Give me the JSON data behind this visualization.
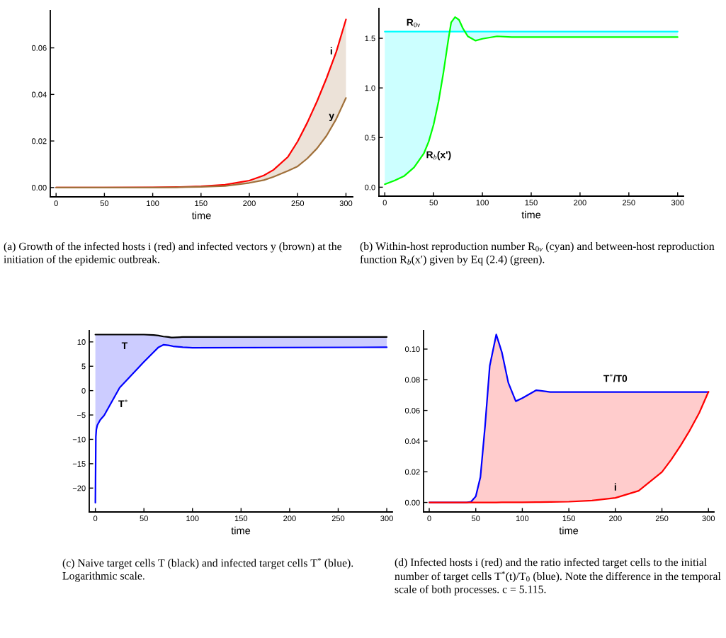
{
  "chart_data": [
    {
      "type": "line",
      "xlabel": "time",
      "x": [
        0,
        50,
        100,
        125,
        150,
        175,
        200,
        215,
        225,
        240,
        250,
        260,
        270,
        280,
        290,
        300
      ],
      "series": [
        {
          "name": "i",
          "color": "#ff0000",
          "values": [
            0,
            0,
            0.0001,
            0.0002,
            0.0005,
            0.0012,
            0.003,
            0.0052,
            0.0076,
            0.0132,
            0.0198,
            0.0279,
            0.037,
            0.0471,
            0.0583,
            0.0722
          ]
        },
        {
          "name": "y",
          "color": "#a0703a",
          "values": [
            0,
            0,
            0,
            0.0001,
            0.0003,
            0.0007,
            0.002,
            0.0032,
            0.0046,
            0.0072,
            0.0091,
            0.0125,
            0.0168,
            0.0223,
            0.0295,
            0.0385
          ],
          "lower": [
            0,
            0,
            0,
            0.0001,
            0.0003,
            0.0007,
            0.002,
            0.0032,
            0.0046,
            0.0072,
            0.0091,
            0.0125,
            0.0168,
            0.0223,
            0.0295,
            0.0385
          ],
          "upper": [
            0,
            0,
            0.0001,
            0.0002,
            0.0005,
            0.0012,
            0.003,
            0.0052,
            0.0076,
            0.0132,
            0.0198,
            0.0279,
            0.037,
            0.0471,
            0.0583,
            0.0722
          ]
        }
      ],
      "xlim": [
        -6,
        307
      ],
      "ylim": [
        -0.004,
        0.076
      ],
      "xticks": [
        0,
        50,
        100,
        150,
        200,
        250,
        300
      ],
      "yticks": [
        {
          "value": 0,
          "label": "0.00"
        },
        {
          "value": 0.02,
          "label": "0.02"
        },
        {
          "value": 0.04,
          "label": "0.04"
        },
        {
          "value": 0.06,
          "label": "0.06"
        }
      ],
      "annotations": [
        "(a) Growth of the infected hosts i (red) and infected vectors y (brown) at the initiation of the epidemic outbreak."
      ]
    },
    {
      "type": "line",
      "xlabel": "time",
      "x": [
        0,
        10,
        20,
        30,
        40,
        45,
        50,
        55,
        60,
        65,
        68,
        72,
        76,
        80,
        85,
        93,
        100,
        115,
        130,
        150,
        300
      ],
      "series": [
        {
          "name": "R$_{0v}$",
          "color": "#00ffff",
          "values": [
            1.567,
            1.567,
            1.567,
            1.567,
            1.567,
            1.567,
            1.567,
            1.567,
            1.567,
            1.567,
            1.567,
            1.567,
            1.567,
            1.567,
            1.567,
            1.567,
            1.567,
            1.567,
            1.567,
            1.567,
            1.567
          ],
          "lower": [
            0.03,
            0.067,
            0.114,
            0.2,
            0.34,
            0.46,
            0.63,
            0.86,
            1.15,
            1.48,
            1.66,
            1.714,
            1.686,
            1.6,
            1.52,
            1.476,
            1.495,
            1.52,
            1.512,
            1.512,
            1.512
          ],
          "upper": [
            1.567,
            1.567,
            1.567,
            1.567,
            1.567,
            1.567,
            1.567,
            1.567,
            1.567,
            1.567,
            1.567,
            1.567,
            1.567,
            1.567,
            1.567,
            1.567,
            1.567,
            1.567,
            1.567,
            1.567,
            1.567
          ]
        },
        {
          "name": "R$_{b}$(x')",
          "color": "#00ff00",
          "values": [
            0.03,
            0.067,
            0.114,
            0.2,
            0.34,
            0.46,
            0.63,
            0.86,
            1.15,
            1.48,
            1.66,
            1.714,
            1.686,
            1.6,
            1.52,
            1.476,
            1.495,
            1.52,
            1.512,
            1.512,
            1.512
          ]
        }
      ],
      "xlim": [
        -6,
        306
      ],
      "ylim": [
        -0.09,
        1.8
      ],
      "xticks": [
        0,
        50,
        100,
        150,
        200,
        250,
        300
      ],
      "yticks": [
        {
          "value": 0,
          "label": "0.0"
        },
        {
          "value": 0.5,
          "label": "0.5"
        },
        {
          "value": 1,
          "label": "1.0"
        },
        {
          "value": 1.5,
          "label": "1.5"
        }
      ],
      "annotations": [
        "(b) Within-host reproduction number R$_{0v}$ (cyan) and between-host reproduction function R$_{b}$(x′) given by Eq (2.4) (green)."
      ]
    },
    {
      "type": "line",
      "xlabel": "time",
      "x": [
        0,
        0.5,
        1,
        2,
        5,
        9,
        25,
        50,
        60,
        65,
        70,
        75,
        78,
        80,
        90,
        100,
        300
      ],
      "series": [
        {
          "name": "T",
          "color": "#000000",
          "values": [
            11.5,
            11.5,
            11.5,
            11.5,
            11.5,
            11.5,
            11.5,
            11.5,
            11.4,
            11.3,
            11.1,
            11.0,
            10.9,
            10.9,
            11.0,
            11.0,
            11.0
          ]
        },
        {
          "name": "T$^{*}$",
          "color": "#0000ff",
          "values": [
            -23,
            -9.5,
            -8,
            -7.1,
            -6,
            -5.1,
            0.6,
            5.9,
            7.9,
            8.9,
            9.4,
            9.3,
            9.2,
            9.1,
            8.9,
            8.8,
            8.9
          ],
          "lower": [
            -23,
            -9.5,
            -8,
            -7.1,
            -6,
            -5.1,
            0.6,
            5.9,
            7.9,
            8.9,
            9.4,
            9.3,
            9.2,
            9.1,
            8.9,
            8.8,
            8.9
          ],
          "upper": [
            11.5,
            11.5,
            11.5,
            11.5,
            11.5,
            11.5,
            11.5,
            11.5,
            11.4,
            11.3,
            11.1,
            11.0,
            10.9,
            10.9,
            11.0,
            11.0,
            11.0
          ]
        }
      ],
      "xlim": [
        -6.3,
        305.8
      ],
      "ylim": [
        -24.9,
        12.3
      ],
      "xticks": [
        0,
        50,
        100,
        150,
        200,
        250,
        300
      ],
      "yticks": [
        {
          "value": -20,
          "label": "−20"
        },
        {
          "value": -15,
          "label": "−15"
        },
        {
          "value": -10,
          "label": "−10"
        },
        {
          "value": -5,
          "label": "−5"
        },
        0,
        5,
        10
      ],
      "annotations": [
        "(c) Naive target cells T (black) and infected target cells T$^{*}$ (blue). Logarithmic scale."
      ]
    },
    {
      "type": "line",
      "xlabel": "time",
      "x": [
        0,
        40,
        45,
        50,
        55,
        60,
        65,
        72,
        78,
        85,
        93,
        100,
        115,
        130,
        150,
        175,
        200,
        225,
        250,
        260,
        270,
        280,
        290,
        300
      ],
      "series": [
        {
          "name": "T$^{*}$/T0",
          "color": "#0000ff",
          "values": [
            0,
            0,
            0.0005,
            0.004,
            0.0166,
            0.05,
            0.089,
            0.1095,
            0.098,
            0.078,
            0.066,
            0.068,
            0.0732,
            0.072,
            0.072,
            0.072,
            0.072,
            0.072,
            0.072,
            0.072,
            0.072,
            0.072,
            0.072,
            0.072
          ]
        },
        {
          "name": "i",
          "color": "#ff0000",
          "values": [
            0,
            0,
            0,
            0,
            0,
            0,
            0,
            0,
            0.0001,
            0.0001,
            0.0001,
            0.0001,
            0.0002,
            0.0003,
            0.0005,
            0.0012,
            0.003,
            0.0076,
            0.0198,
            0.0279,
            0.037,
            0.0471,
            0.0583,
            0.0722
          ],
          "lower": [
            0,
            0,
            0,
            0,
            0,
            0,
            0,
            0,
            0.0001,
            0.0001,
            0.0001,
            0.0001,
            0.0002,
            0.0003,
            0.0005,
            0.0012,
            0.003,
            0.0076,
            0.0198,
            0.0279,
            0.037,
            0.0471,
            0.0583,
            0.0722
          ],
          "upper": [
            0,
            0,
            0.0005,
            0.004,
            0.0166,
            0.05,
            0.089,
            0.1095,
            0.098,
            0.078,
            0.066,
            0.068,
            0.0732,
            0.072,
            0.072,
            0.072,
            0.072,
            0.072,
            0.072,
            0.072,
            0.072,
            0.072,
            0.072,
            0.072
          ]
        }
      ],
      "xlim": [
        -6.1,
        305.9
      ],
      "ylim": [
        -0.0062,
        0.112
      ],
      "xticks": [
        0,
        50,
        100,
        150,
        200,
        250,
        300
      ],
      "yticks": [
        {
          "value": 0,
          "label": "0.00"
        },
        {
          "value": 0.02,
          "label": "0.02"
        },
        {
          "value": 0.04,
          "label": "0.04"
        },
        {
          "value": 0.06,
          "label": "0.06"
        },
        {
          "value": 0.08,
          "label": "0.08"
        },
        {
          "value": 0.1,
          "label": "0.10"
        }
      ],
      "annotations": [
        "(d) Infected hosts i (red) and the ratio infected target cells to the initial number of target cells T$^{*}$(t)/T$_{0}$ (blue). Note the difference in the temporal scale of both processes. c = 5.115."
      ]
    }
  ]
}
